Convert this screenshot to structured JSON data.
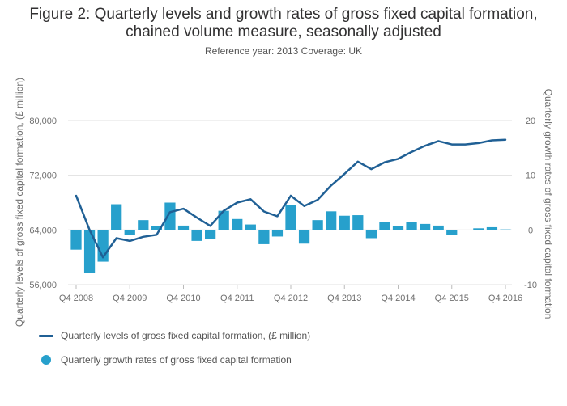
{
  "title_line1": "Figure 2: Quarterly levels and growth rates of gross fixed capital formation,",
  "title_line2": "chained volume measure, seasonally adjusted",
  "subtitle": "Reference year: 2013 Coverage: UK",
  "colors": {
    "line": "#206095",
    "bars": "#27a0cc",
    "grid": "#e0e0e0",
    "zero": "#cccccc"
  },
  "chart_data": {
    "type": "bar+line",
    "title": "Figure 2: Quarterly levels and growth rates of gross fixed capital formation, chained volume measure, seasonally adjusted",
    "subtitle": "Reference year: 2013 Coverage: UK",
    "ylabel_left": "Quarterly levels of gross fixed capital formation, (£ million)",
    "ylabel_right": "Quarterly growth rates of gross fixed capital formation",
    "ylim_left": [
      56000,
      80000
    ],
    "ylim_right": [
      -10,
      20
    ],
    "yticks_left": [
      "80,000",
      "72,000",
      "64,000",
      "56,000"
    ],
    "yticks_left_values": [
      80000,
      72000,
      64000,
      56000
    ],
    "yticks_right": [
      "20",
      "10",
      "0",
      "-10"
    ],
    "yticks_right_values": [
      20,
      10,
      0,
      -10
    ],
    "xtick_labels": [
      "Q4 2008",
      "Q4 2009",
      "Q4 2010",
      "Q4 2011",
      "Q4 2012",
      "Q4 2013",
      "Q4 2014",
      "Q4 2015",
      "Q4 2016"
    ],
    "xtick_indices": [
      0,
      4,
      8,
      12,
      16,
      20,
      24,
      28,
      32
    ],
    "grid": true,
    "legend_position": "bottom-left",
    "categories": [
      "Q4 2008",
      "Q1 2009",
      "Q2 2009",
      "Q3 2009",
      "Q4 2009",
      "Q1 2010",
      "Q2 2010",
      "Q3 2010",
      "Q4 2010",
      "Q1 2011",
      "Q2 2011",
      "Q3 2011",
      "Q4 2011",
      "Q1 2012",
      "Q2 2012",
      "Q3 2012",
      "Q4 2012",
      "Q1 2013",
      "Q2 2013",
      "Q3 2013",
      "Q4 2013",
      "Q1 2014",
      "Q2 2014",
      "Q3 2014",
      "Q4 2014",
      "Q1 2015",
      "Q2 2015",
      "Q3 2015",
      "Q4 2015",
      "Q1 2016",
      "Q2 2016",
      "Q3 2016",
      "Q4 2016"
    ],
    "series": [
      {
        "name": "Quarterly levels of gross fixed capital formation, (£ million)",
        "type": "line",
        "axis": "left",
        "values": [
          69000,
          64000,
          60000,
          62800,
          62400,
          63000,
          63300,
          66600,
          67100,
          65800,
          64600,
          66800,
          68000,
          68500,
          66700,
          66000,
          69000,
          67500,
          68400,
          70500,
          72200,
          74000,
          72900,
          73900,
          74400,
          75400,
          76300,
          77000,
          76500,
          76500,
          76700,
          77100,
          77200
        ]
      },
      {
        "name": "Quarterly growth rates of gross fixed capital formation",
        "type": "bar",
        "axis": "right",
        "values": [
          -3.6,
          -7.8,
          -5.8,
          4.7,
          -0.9,
          1.8,
          0.7,
          5.0,
          0.8,
          -2.0,
          -1.6,
          3.5,
          2.0,
          1.0,
          -2.6,
          -1.2,
          4.5,
          -2.5,
          1.8,
          3.4,
          2.6,
          2.7,
          -1.5,
          1.4,
          0.7,
          1.4,
          1.1,
          0.8,
          -0.9,
          0.0,
          0.3,
          0.5,
          0.1
        ]
      }
    ]
  }
}
